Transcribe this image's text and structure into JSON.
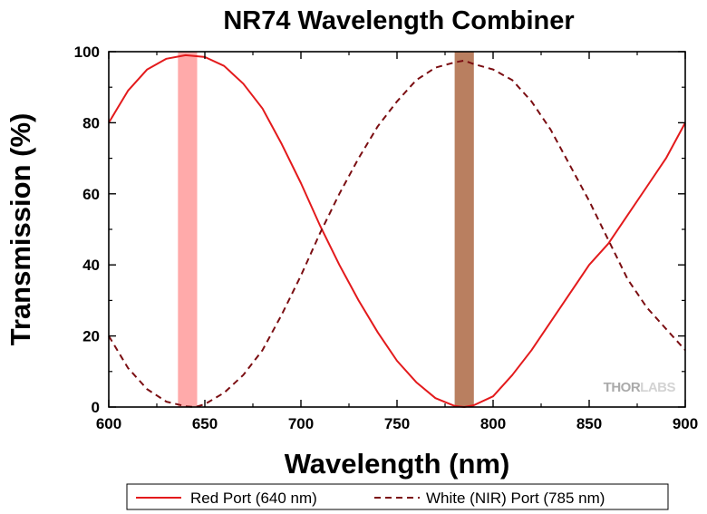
{
  "chart_data": {
    "type": "line",
    "title": "NR74 Wavelength Combiner",
    "xlabel": "Wavelength (nm)",
    "ylabel": "Transmission (%)",
    "xlim": [
      600,
      900
    ],
    "ylim": [
      0,
      100
    ],
    "x_ticks": [
      600,
      650,
      700,
      750,
      800,
      850,
      900
    ],
    "y_ticks": [
      0,
      20,
      40,
      60,
      80,
      100
    ],
    "x_tick_labels": [
      "600",
      "650",
      "700",
      "750",
      "800",
      "850",
      "900"
    ],
    "y_tick_labels": [
      "0",
      "20",
      "40",
      "60",
      "80",
      "100"
    ],
    "grid": false,
    "legend_position": "bottom",
    "highlight_bands": [
      {
        "x_start": 636,
        "x_end": 646,
        "color": "#ffaaaa"
      },
      {
        "x_start": 780,
        "x_end": 790,
        "color": "#b97f60"
      }
    ],
    "series": [
      {
        "name": "Red Port (640 nm)",
        "style": "solid",
        "color": "#e31a1c",
        "x": [
          600,
          610,
          620,
          630,
          640,
          650,
          660,
          670,
          680,
          690,
          700,
          710,
          720,
          730,
          740,
          750,
          760,
          770,
          780,
          785,
          790,
          800,
          810,
          820,
          830,
          840,
          850,
          860,
          870,
          880,
          890,
          900
        ],
        "y": [
          80,
          89,
          95,
          98,
          99,
          98.5,
          96,
          91,
          84,
          74,
          63,
          51,
          40,
          30,
          21,
          13,
          7,
          2.5,
          0.3,
          0,
          0.5,
          3,
          9,
          16,
          24,
          32,
          40,
          46,
          54,
          62,
          70,
          80
        ]
      },
      {
        "name": "White (NIR) Port (785 nm)",
        "style": "dashed",
        "color": "#7b0e12",
        "x": [
          600,
          610,
          620,
          630,
          640,
          645,
          650,
          660,
          670,
          680,
          690,
          700,
          710,
          720,
          730,
          740,
          750,
          760,
          770,
          780,
          785,
          790,
          800,
          810,
          820,
          830,
          840,
          850,
          860,
          870,
          880,
          890,
          900
        ],
        "y": [
          20,
          11,
          5,
          1.5,
          0.2,
          0,
          0.8,
          4,
          9,
          16,
          26,
          37,
          49,
          60,
          70,
          79,
          86,
          92,
          95.5,
          97,
          97.5,
          96.5,
          95,
          92,
          86,
          78,
          68,
          58,
          47,
          36,
          28,
          22,
          16
        ]
      }
    ]
  },
  "watermark": {
    "brand_dark": "THOR",
    "brand_light": "LABS"
  }
}
